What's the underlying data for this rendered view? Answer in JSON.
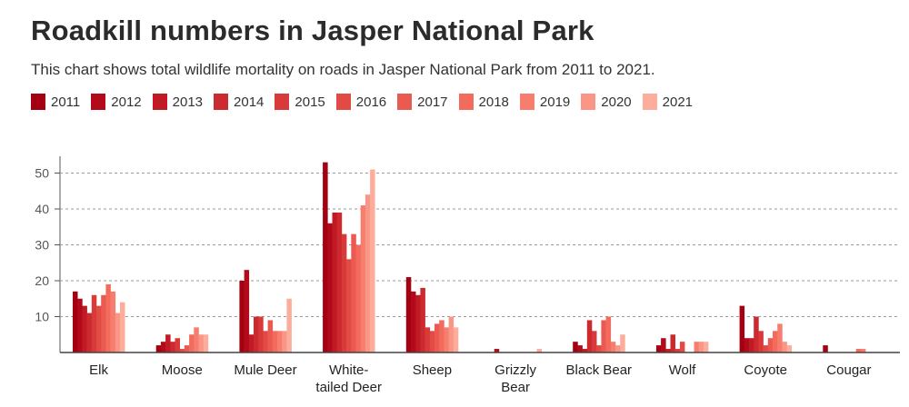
{
  "chart_data": {
    "type": "bar",
    "title": "Roadkill numbers in Jasper National Park",
    "subtitle": "This chart shows total wildlife mortality on roads in Jasper National Park from 2011 to 2021.",
    "categories": [
      [
        "Elk"
      ],
      [
        "Moose"
      ],
      [
        "Mule Deer"
      ],
      [
        "White-",
        "tailed Deer"
      ],
      [
        "Sheep"
      ],
      [
        "Grizzly",
        "Bear"
      ],
      [
        "Black Bear"
      ],
      [
        "Wolf"
      ],
      [
        "Coyote"
      ],
      [
        "Cougar"
      ]
    ],
    "category_names": [
      "Elk",
      "Moose",
      "Mule Deer",
      "White-tailed Deer",
      "Sheep",
      "Grizzly Bear",
      "Black Bear",
      "Wolf",
      "Coyote",
      "Cougar"
    ],
    "ylim": [
      0,
      55
    ],
    "yticks": [
      10,
      20,
      30,
      40,
      50
    ],
    "grid": true,
    "legend_position": "top-left",
    "series": [
      {
        "name": "2011",
        "color": "#a30012",
        "values": [
          17,
          2,
          20,
          53,
          21,
          0,
          3,
          2,
          13,
          2
        ]
      },
      {
        "name": "2012",
        "color": "#b2091b",
        "values": [
          15,
          3,
          23,
          36,
          17,
          1,
          2,
          4,
          4,
          0
        ]
      },
      {
        "name": "2013",
        "color": "#c01a24",
        "values": [
          13,
          5,
          5,
          39,
          16,
          0,
          1,
          1,
          4,
          0
        ]
      },
      {
        "name": "2014",
        "color": "#cc2a2f",
        "values": [
          11,
          3,
          10,
          39,
          18,
          0,
          9,
          5,
          10,
          0
        ]
      },
      {
        "name": "2015",
        "color": "#d83a3a",
        "values": [
          16,
          4,
          10,
          33,
          7,
          0,
          6,
          1,
          6,
          0
        ]
      },
      {
        "name": "2016",
        "color": "#e24a44",
        "values": [
          13,
          1,
          6,
          26,
          6,
          0,
          2,
          3,
          2,
          0
        ]
      },
      {
        "name": "2017",
        "color": "#eb5a50",
        "values": [
          16,
          2,
          9,
          33,
          8,
          0,
          9,
          0,
          4,
          0
        ]
      },
      {
        "name": "2018",
        "color": "#f26b5d",
        "values": [
          19,
          5,
          6,
          30,
          9,
          0,
          10,
          0,
          6,
          1
        ]
      },
      {
        "name": "2019",
        "color": "#f77e6e",
        "values": [
          17,
          7,
          6,
          41,
          7,
          0,
          3,
          3,
          8,
          1
        ]
      },
      {
        "name": "2020",
        "color": "#fa9685",
        "values": [
          11,
          5,
          6,
          44,
          10,
          0,
          2,
          3,
          3,
          0
        ]
      },
      {
        "name": "2021",
        "color": "#fcad9c",
        "values": [
          14,
          5,
          15,
          51,
          7,
          1,
          5,
          3,
          2,
          0
        ]
      }
    ]
  }
}
